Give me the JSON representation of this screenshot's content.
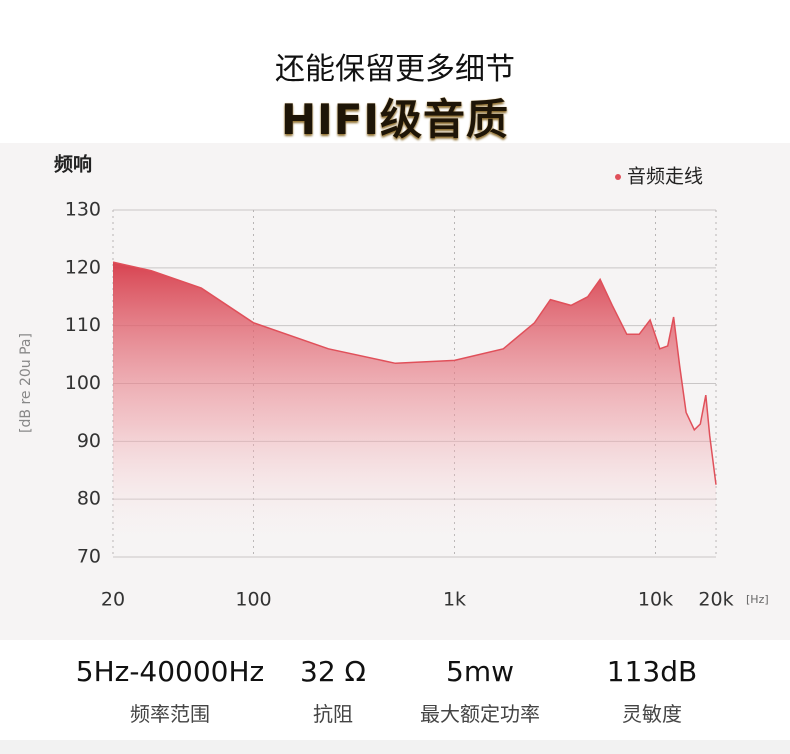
{
  "header": {
    "title": "还能保留更多细节",
    "subtitle": "HIFI级音质"
  },
  "chart_data": {
    "type": "area",
    "title": "频响",
    "y_label": "[dB re 20u Pa]",
    "x_unit": "[Hz]",
    "x": [
      20,
      31,
      55,
      100,
      236,
      508,
      1000,
      1750,
      2500,
      3000,
      3800,
      4600,
      5300,
      6100,
      7200,
      8300,
      9400,
      10500,
      11500,
      12300,
      13200,
      14200,
      15600,
      16700,
      17800,
      18600,
      20000
    ],
    "series": [
      {
        "name": "音频走线",
        "color": "#e0505a",
        "values": [
          121,
          119.5,
          116.5,
          110.5,
          106,
          103.5,
          104,
          106,
          110.5,
          114.5,
          113.5,
          115,
          118,
          113.5,
          108.5,
          108.5,
          111,
          106,
          106.5,
          111.5,
          103,
          95,
          92,
          93,
          98,
          91,
          82.5
        ]
      }
    ],
    "xlim": [
      20,
      20000
    ],
    "x_log": true,
    "xticks": [
      20,
      100,
      {
        "value": 1000,
        "label": "1k"
      },
      {
        "value": 10000,
        "label": "10k"
      },
      {
        "value": 20000,
        "label": "20k"
      }
    ],
    "ylim": [
      70,
      130
    ],
    "yticks": [
      70,
      80,
      90,
      100,
      110,
      120,
      130
    ],
    "grid": true,
    "legend": "top-right"
  },
  "specs": [
    {
      "value": "5Hz-40000Hz",
      "label": "频率范围"
    },
    {
      "value": "32 Ω",
      "label": "抗阻"
    },
    {
      "value": "5mw",
      "label": "最大额定功率"
    },
    {
      "value": "113dB",
      "label": "灵敏度"
    }
  ]
}
